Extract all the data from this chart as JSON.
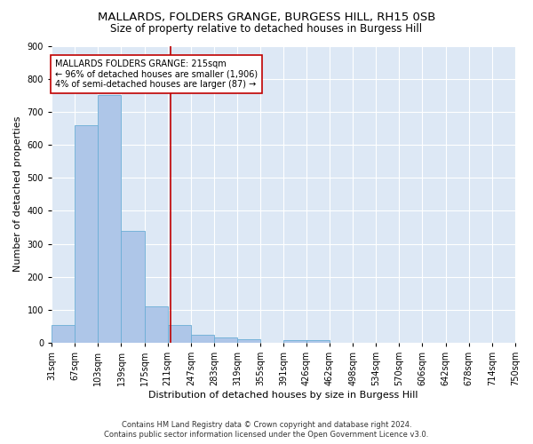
{
  "title": "MALLARDS, FOLDERS GRANGE, BURGESS HILL, RH15 0SB",
  "subtitle": "Size of property relative to detached houses in Burgess Hill",
  "xlabel": "Distribution of detached houses by size in Burgess Hill",
  "ylabel": "Number of detached properties",
  "bar_color": "#aec6e8",
  "bar_edge_color": "#6baed6",
  "bg_color": "#dde8f5",
  "grid_color": "white",
  "vline_x": 215,
  "vline_color": "#c00000",
  "annotation_text": "MALLARDS FOLDERS GRANGE: 215sqm\n← 96% of detached houses are smaller (1,906)\n4% of semi-detached houses are larger (87) →",
  "annotation_box_color": "white",
  "annotation_box_edge_color": "#c00000",
  "bins": [
    31,
    67,
    103,
    139,
    175,
    211,
    247,
    283,
    319,
    355,
    391,
    426,
    462,
    498,
    534,
    570,
    606,
    642,
    678,
    714,
    750
  ],
  "bar_heights": [
    55,
    660,
    750,
    338,
    110,
    55,
    25,
    15,
    10,
    0,
    8,
    8,
    0,
    0,
    0,
    0,
    0,
    0,
    0,
    0
  ],
  "ylim": [
    0,
    900
  ],
  "yticks": [
    0,
    100,
    200,
    300,
    400,
    500,
    600,
    700,
    800,
    900
  ],
  "footer_line1": "Contains HM Land Registry data © Crown copyright and database right 2024.",
  "footer_line2": "Contains public sector information licensed under the Open Government Licence v3.0.",
  "title_fontsize": 9.5,
  "subtitle_fontsize": 8.5,
  "tick_fontsize": 7,
  "label_fontsize": 8,
  "annotation_fontsize": 7,
  "footer_fontsize": 6
}
